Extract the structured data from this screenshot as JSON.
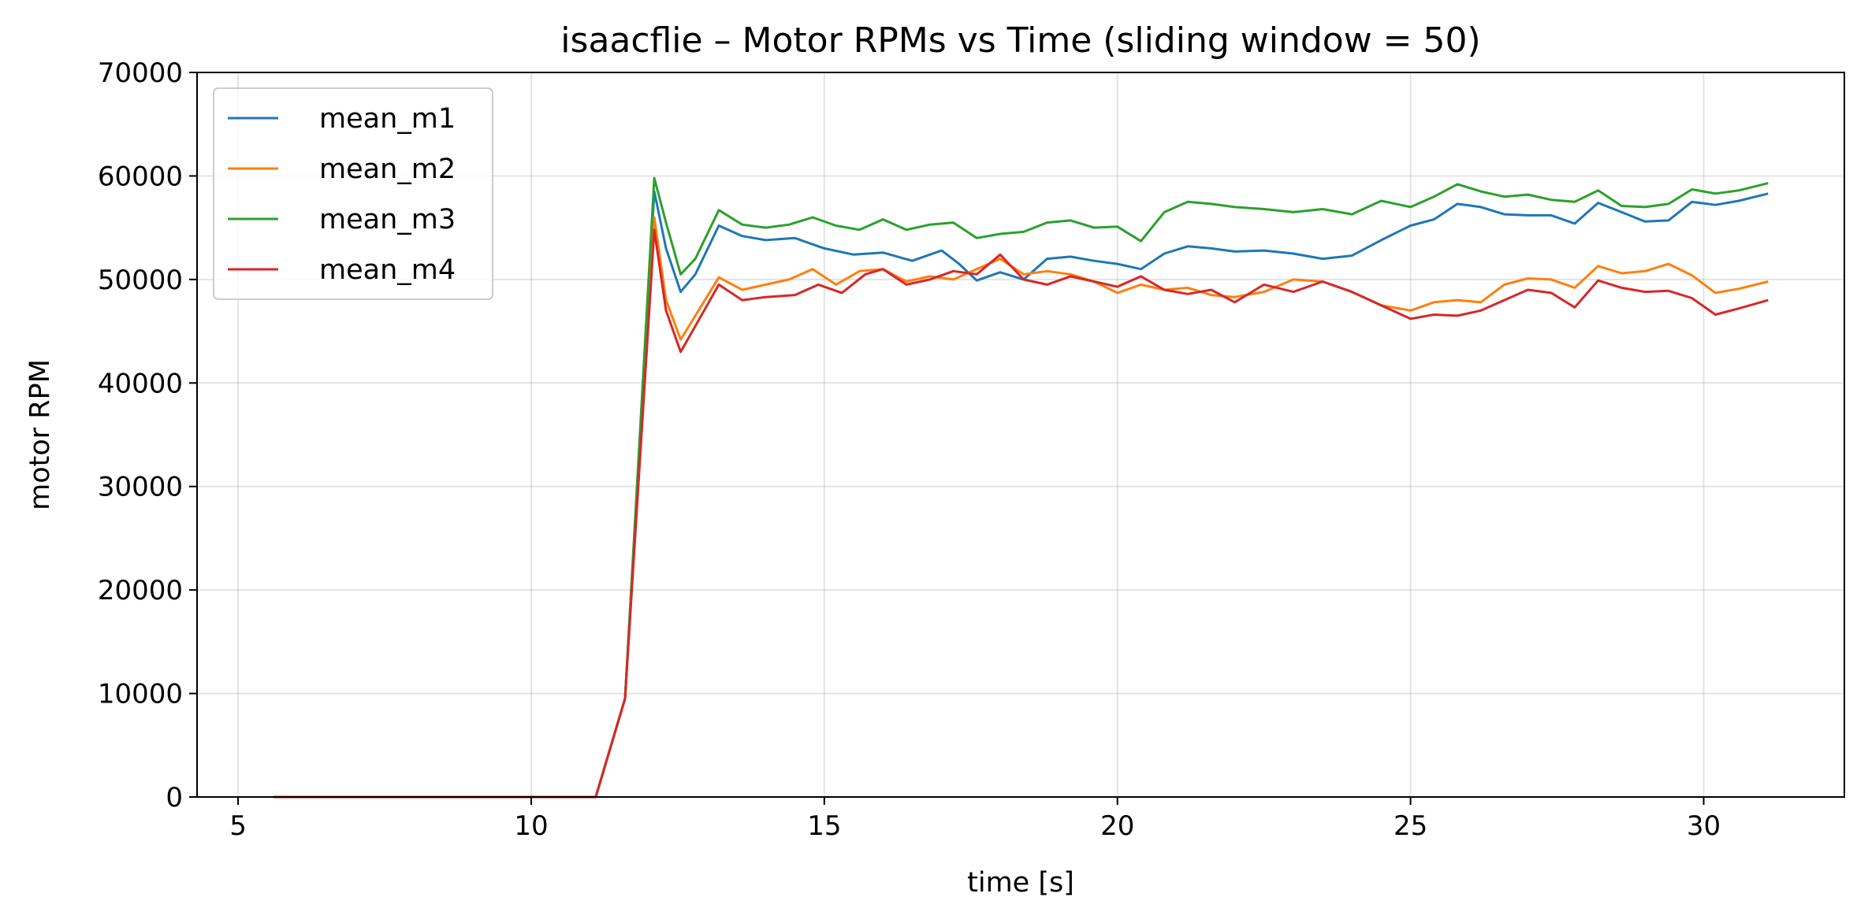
{
  "chart_data": {
    "type": "line",
    "title": "isaacflie – Motor RPMs vs Time (sliding window = 50)",
    "xlabel": "time [s]",
    "ylabel": "motor RPM",
    "xlim": [
      4.3,
      32.4
    ],
    "ylim": [
      0,
      70000
    ],
    "xticks": [
      5,
      10,
      15,
      20,
      25,
      30
    ],
    "xtick_labels": [
      "5",
      "10",
      "15",
      "20",
      "25",
      "30"
    ],
    "yticks": [
      0,
      10000,
      20000,
      30000,
      40000,
      50000,
      60000,
      70000
    ],
    "ytick_labels": [
      "0",
      "10000",
      "20000",
      "30000",
      "40000",
      "50000",
      "60000",
      "70000"
    ],
    "grid": true,
    "legend_position": "top-left",
    "series": [
      {
        "name": "mean_m1",
        "color": "#1f77b4",
        "points": [
          [
            5.6,
            0
          ],
          [
            11.1,
            0
          ],
          [
            11.6,
            9500
          ],
          [
            12.1,
            58500
          ],
          [
            12.3,
            53000
          ],
          [
            12.55,
            48800
          ],
          [
            12.8,
            50500
          ],
          [
            13.2,
            55200
          ],
          [
            13.6,
            54200
          ],
          [
            14.0,
            53800
          ],
          [
            14.5,
            54000
          ],
          [
            15.0,
            53000
          ],
          [
            15.5,
            52400
          ],
          [
            16.0,
            52600
          ],
          [
            16.5,
            51800
          ],
          [
            17.0,
            52800
          ],
          [
            17.3,
            51500
          ],
          [
            17.6,
            49900
          ],
          [
            18.0,
            50700
          ],
          [
            18.4,
            50000
          ],
          [
            18.8,
            52000
          ],
          [
            19.2,
            52200
          ],
          [
            19.6,
            51800
          ],
          [
            20.0,
            51500
          ],
          [
            20.4,
            51000
          ],
          [
            20.8,
            52500
          ],
          [
            21.2,
            53200
          ],
          [
            21.6,
            53000
          ],
          [
            22.0,
            52700
          ],
          [
            22.5,
            52800
          ],
          [
            23.0,
            52500
          ],
          [
            23.5,
            52000
          ],
          [
            24.0,
            52300
          ],
          [
            24.5,
            53800
          ],
          [
            25.0,
            55200
          ],
          [
            25.4,
            55800
          ],
          [
            25.8,
            57300
          ],
          [
            26.2,
            57000
          ],
          [
            26.6,
            56300
          ],
          [
            27.0,
            56200
          ],
          [
            27.4,
            56200
          ],
          [
            27.8,
            55400
          ],
          [
            28.2,
            57400
          ],
          [
            28.6,
            56500
          ],
          [
            29.0,
            55600
          ],
          [
            29.4,
            55700
          ],
          [
            29.8,
            57500
          ],
          [
            30.2,
            57200
          ],
          [
            30.6,
            57600
          ],
          [
            31.1,
            58300
          ]
        ]
      },
      {
        "name": "mean_m2",
        "color": "#ff7f0e",
        "points": [
          [
            5.6,
            0
          ],
          [
            11.1,
            0
          ],
          [
            11.6,
            9500
          ],
          [
            12.1,
            56000
          ],
          [
            12.3,
            48000
          ],
          [
            12.55,
            44200
          ],
          [
            12.8,
            46500
          ],
          [
            13.2,
            50200
          ],
          [
            13.6,
            49000
          ],
          [
            14.0,
            49500
          ],
          [
            14.4,
            50000
          ],
          [
            14.8,
            51000
          ],
          [
            15.2,
            49500
          ],
          [
            15.6,
            50800
          ],
          [
            16.0,
            51000
          ],
          [
            16.4,
            49800
          ],
          [
            16.8,
            50300
          ],
          [
            17.2,
            50000
          ],
          [
            17.6,
            51000
          ],
          [
            18.0,
            52000
          ],
          [
            18.4,
            50500
          ],
          [
            18.8,
            50800
          ],
          [
            19.2,
            50500
          ],
          [
            19.6,
            49800
          ],
          [
            20.0,
            48700
          ],
          [
            20.4,
            49500
          ],
          [
            20.8,
            49000
          ],
          [
            21.2,
            49200
          ],
          [
            21.6,
            48500
          ],
          [
            22.0,
            48300
          ],
          [
            22.5,
            48800
          ],
          [
            23.0,
            50000
          ],
          [
            23.5,
            49800
          ],
          [
            24.0,
            48800
          ],
          [
            24.5,
            47500
          ],
          [
            25.0,
            47000
          ],
          [
            25.4,
            47800
          ],
          [
            25.8,
            48000
          ],
          [
            26.2,
            47800
          ],
          [
            26.6,
            49500
          ],
          [
            27.0,
            50100
          ],
          [
            27.4,
            50000
          ],
          [
            27.8,
            49200
          ],
          [
            28.2,
            51300
          ],
          [
            28.6,
            50600
          ],
          [
            29.0,
            50800
          ],
          [
            29.4,
            51500
          ],
          [
            29.8,
            50400
          ],
          [
            30.2,
            48700
          ],
          [
            30.6,
            49100
          ],
          [
            31.1,
            49800
          ]
        ]
      },
      {
        "name": "mean_m3",
        "color": "#2ca02c",
        "points": [
          [
            5.6,
            0
          ],
          [
            11.1,
            0
          ],
          [
            11.6,
            9500
          ],
          [
            12.1,
            59800
          ],
          [
            12.3,
            55500
          ],
          [
            12.55,
            50500
          ],
          [
            12.8,
            52000
          ],
          [
            13.2,
            56700
          ],
          [
            13.6,
            55300
          ],
          [
            14.0,
            55000
          ],
          [
            14.4,
            55300
          ],
          [
            14.8,
            56000
          ],
          [
            15.2,
            55200
          ],
          [
            15.6,
            54800
          ],
          [
            16.0,
            55800
          ],
          [
            16.4,
            54800
          ],
          [
            16.8,
            55300
          ],
          [
            17.2,
            55500
          ],
          [
            17.6,
            54000
          ],
          [
            18.0,
            54400
          ],
          [
            18.4,
            54600
          ],
          [
            18.8,
            55500
          ],
          [
            19.2,
            55700
          ],
          [
            19.6,
            55000
          ],
          [
            20.0,
            55100
          ],
          [
            20.4,
            53700
          ],
          [
            20.8,
            56500
          ],
          [
            21.2,
            57500
          ],
          [
            21.6,
            57300
          ],
          [
            22.0,
            57000
          ],
          [
            22.5,
            56800
          ],
          [
            23.0,
            56500
          ],
          [
            23.5,
            56800
          ],
          [
            24.0,
            56300
          ],
          [
            24.5,
            57600
          ],
          [
            25.0,
            57000
          ],
          [
            25.4,
            58000
          ],
          [
            25.8,
            59200
          ],
          [
            26.2,
            58500
          ],
          [
            26.6,
            58000
          ],
          [
            27.0,
            58200
          ],
          [
            27.4,
            57700
          ],
          [
            27.8,
            57500
          ],
          [
            28.2,
            58600
          ],
          [
            28.6,
            57100
          ],
          [
            29.0,
            57000
          ],
          [
            29.4,
            57300
          ],
          [
            29.8,
            58700
          ],
          [
            30.2,
            58300
          ],
          [
            30.6,
            58600
          ],
          [
            31.1,
            59300
          ]
        ]
      },
      {
        "name": "mean_m4",
        "color": "#d62728",
        "points": [
          [
            5.6,
            0
          ],
          [
            11.1,
            0
          ],
          [
            11.6,
            9500
          ],
          [
            12.1,
            54800
          ],
          [
            12.3,
            47000
          ],
          [
            12.55,
            43000
          ],
          [
            12.8,
            45500
          ],
          [
            13.2,
            49500
          ],
          [
            13.6,
            48000
          ],
          [
            14.0,
            48300
          ],
          [
            14.5,
            48500
          ],
          [
            14.9,
            49500
          ],
          [
            15.3,
            48700
          ],
          [
            15.7,
            50500
          ],
          [
            16.0,
            51000
          ],
          [
            16.4,
            49500
          ],
          [
            16.8,
            50000
          ],
          [
            17.2,
            50800
          ],
          [
            17.6,
            50500
          ],
          [
            18.0,
            52400
          ],
          [
            18.4,
            50000
          ],
          [
            18.8,
            49500
          ],
          [
            19.2,
            50300
          ],
          [
            19.6,
            49800
          ],
          [
            20.0,
            49300
          ],
          [
            20.4,
            50300
          ],
          [
            20.8,
            49000
          ],
          [
            21.2,
            48600
          ],
          [
            21.6,
            49000
          ],
          [
            22.0,
            47800
          ],
          [
            22.5,
            49500
          ],
          [
            23.0,
            48800
          ],
          [
            23.5,
            49800
          ],
          [
            24.0,
            48800
          ],
          [
            24.5,
            47500
          ],
          [
            25.0,
            46200
          ],
          [
            25.4,
            46600
          ],
          [
            25.8,
            46500
          ],
          [
            26.2,
            47000
          ],
          [
            26.6,
            48000
          ],
          [
            27.0,
            49000
          ],
          [
            27.4,
            48700
          ],
          [
            27.8,
            47300
          ],
          [
            28.2,
            49900
          ],
          [
            28.6,
            49200
          ],
          [
            29.0,
            48800
          ],
          [
            29.4,
            48900
          ],
          [
            29.8,
            48200
          ],
          [
            30.2,
            46600
          ],
          [
            30.6,
            47200
          ],
          [
            31.1,
            48000
          ]
        ]
      }
    ]
  }
}
